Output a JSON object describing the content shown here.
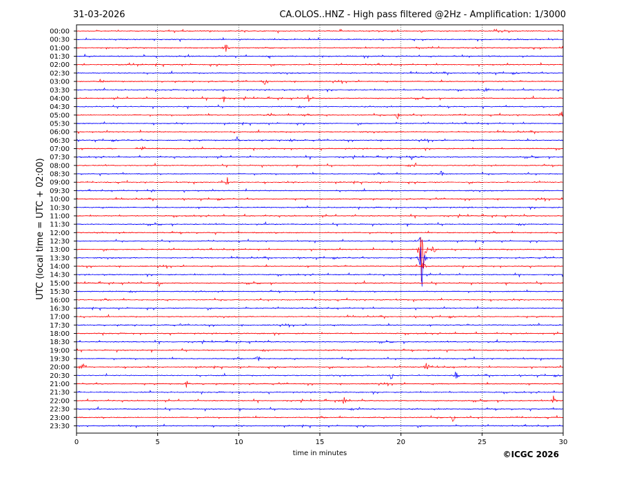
{
  "header": {
    "date": "31-03-2026",
    "title": "CA.OLOS..HNZ - High pass filtered @2Hz - Amplification: 1/3000"
  },
  "footer": {
    "copyright": "©ICGC 2026"
  },
  "colors": {
    "red_trace": "#ff0000",
    "blue_trace": "#0000ff",
    "frame": "#000000",
    "grid": "#000000"
  },
  "chart_data": {
    "type": "line",
    "title": "CA.OLOS..HNZ - High pass filtered @2Hz - Amplification: 1/3000",
    "xlabel": "time in minutes",
    "ylabel": "UTC (local time = UTC + 02:00)",
    "xlim": [
      0,
      30
    ],
    "xticks": [
      0,
      5,
      10,
      15,
      20,
      25,
      30
    ],
    "grid": "vertical dotted lines at 5-minute intervals",
    "rows": [
      "00:00",
      "00:30",
      "01:00",
      "01:30",
      "02:00",
      "02:30",
      "03:00",
      "03:30",
      "04:00",
      "04:30",
      "05:00",
      "05:30",
      "06:00",
      "06:30",
      "07:00",
      "07:30",
      "08:00",
      "08:30",
      "09:00",
      "09:30",
      "10:00",
      "10:30",
      "11:00",
      "11:30",
      "12:00",
      "12:30",
      "13:00",
      "13:30",
      "14:00",
      "14:30",
      "15:00",
      "15:30",
      "16:00",
      "16:30",
      "17:00",
      "17:30",
      "18:00",
      "18:30",
      "19:00",
      "19:30",
      "20:00",
      "20:30",
      "21:00",
      "21:30",
      "22:00",
      "22:30",
      "23:00",
      "23:30"
    ],
    "row_colors": "alternating red / blue, starting red at 00:00 (red hourly rows, blue half-hour rows)",
    "data_gap": {
      "row": "07:00",
      "from_minute": 2.5,
      "to_minute": 3.6
    },
    "events": [
      {
        "row": "01:00",
        "minute": 9.2,
        "amplitude": 0.5
      },
      {
        "row": "03:00",
        "minute": 1.5,
        "amplitude": 0.4
      },
      {
        "row": "03:00",
        "minute": 11.6,
        "amplitude": 0.35
      },
      {
        "row": "03:30",
        "minute": 25.2,
        "amplitude": 0.5
      },
      {
        "row": "04:00",
        "minute": 9.1,
        "amplitude": 0.45
      },
      {
        "row": "04:00",
        "minute": 14.3,
        "amplitude": 0.35
      },
      {
        "row": "05:00",
        "minute": 11.9,
        "amplitude": 0.35
      },
      {
        "row": "05:00",
        "minute": 14.2,
        "amplitude": 0.35
      },
      {
        "row": "05:00",
        "minute": 19.8,
        "amplitude": 0.35
      },
      {
        "row": "05:00",
        "minute": 29.9,
        "amplitude": 0.4
      },
      {
        "row": "06:30",
        "minute": 13.3,
        "amplitude": 0.4
      },
      {
        "row": "06:30",
        "minute": 9.9,
        "amplitude": 0.35
      },
      {
        "row": "07:00",
        "minute": 4.1,
        "amplitude": 0.3
      },
      {
        "row": "07:30",
        "minute": 20.7,
        "amplitude": 0.35
      },
      {
        "row": "08:00",
        "minute": 20.9,
        "amplitude": 0.35
      },
      {
        "row": "08:30",
        "minute": 22.5,
        "amplitude": 0.35
      },
      {
        "row": "09:00",
        "minute": 9.3,
        "amplitude": 0.45
      },
      {
        "row": "09:30",
        "minute": 4.7,
        "amplitude": 0.3
      },
      {
        "row": "12:30",
        "minute": 21.2,
        "amplitude": 0.4
      },
      {
        "row": "13:00",
        "minute": 21.3,
        "amplitude": 4.5
      },
      {
        "row": "13:30",
        "minute": 21.3,
        "amplitude": 2.5
      },
      {
        "row": "13:00",
        "minute": 22.0,
        "amplitude": 0.5
      },
      {
        "row": "14:00",
        "minute": 21.4,
        "amplitude": 0.6
      },
      {
        "row": "15:00",
        "minute": 5.1,
        "amplitude": 0.35
      },
      {
        "row": "19:30",
        "minute": 11.2,
        "amplitude": 0.4
      },
      {
        "row": "20:00",
        "minute": 0.4,
        "amplitude": 0.5
      },
      {
        "row": "20:00",
        "minute": 21.6,
        "amplitude": 0.55
      },
      {
        "row": "20:30",
        "minute": 19.4,
        "amplitude": 0.45
      },
      {
        "row": "20:30",
        "minute": 23.4,
        "amplitude": 0.55
      },
      {
        "row": "21:00",
        "minute": 6.8,
        "amplitude": 0.3
      },
      {
        "row": "22:00",
        "minute": 16.5,
        "amplitude": 0.55
      },
      {
        "row": "22:00",
        "minute": 29.4,
        "amplitude": 0.5
      },
      {
        "row": "22:30",
        "minute": 17.5,
        "amplitude": 0.35
      },
      {
        "row": "23:00",
        "minute": 23.2,
        "amplitude": 0.4
      }
    ]
  }
}
